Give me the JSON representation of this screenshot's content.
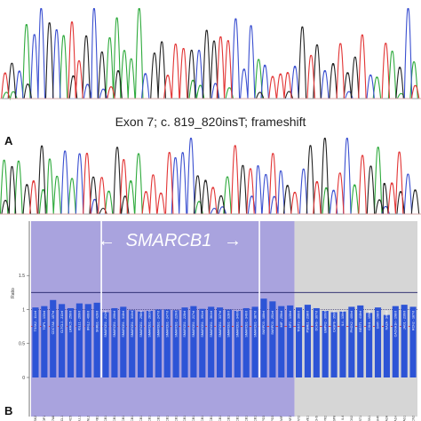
{
  "panelA": {
    "letter": "A",
    "caption": "Exon 7; c. 819_820insT; frameshift"
  },
  "panelB": {
    "letter": "B",
    "gene_label": "SMARCB1",
    "left_arrow": "←",
    "right_arrow": "→",
    "y_axis_title": "Ratio",
    "y_ticks": [
      "1.5",
      "1",
      "0.5",
      "0"
    ],
    "ref_lines": [
      1.25,
      1.0,
      0.75
    ],
    "ylim": [
      0,
      2.3
    ],
    "probes": [
      {
        "label": "TSSK2 - 114nt",
        "ratio": 1.03,
        "region": "blue"
      },
      {
        "label": "TOP1 - 133nt",
        "ratio": 1.05,
        "region": "blue"
      },
      {
        "label": "CDC7A8 - 157nt",
        "ratio": 1.14,
        "region": "blue"
      },
      {
        "label": "CLTCL1 - 211nt",
        "ratio": 1.08,
        "region": "blue"
      },
      {
        "label": "LRRC5 - 256nt",
        "ratio": 1.02,
        "region": "blue"
      },
      {
        "label": "IGLL1 - 269nt",
        "ratio": 1.09,
        "region": "blue"
      },
      {
        "label": "IFNL2 - 406nt",
        "ratio": 1.08,
        "region": "blue"
      },
      {
        "label": "SNRB1 - 429nt",
        "ratio": 1.1,
        "region": "blue"
      },
      {
        "label": "SMARCB1 - 212nt",
        "ratio": 0.96,
        "region": "blue"
      },
      {
        "label": "SMARCB1 - 206nt",
        "ratio": 1.02,
        "region": "blue"
      },
      {
        "label": "SMARCB1 - 318nt",
        "ratio": 1.04,
        "region": "blue"
      },
      {
        "label": "SMARCB1 - 310nt",
        "ratio": 0.99,
        "region": "blue"
      },
      {
        "label": "SMARCB1 - 298nt",
        "ratio": 0.97,
        "region": "blue"
      },
      {
        "label": "SMARCB1 - 283nt",
        "ratio": 0.98,
        "region": "blue"
      },
      {
        "label": "SMARCB1 - 247nt",
        "ratio": 1.0,
        "region": "blue"
      },
      {
        "label": "SMARCB1 - 247nt",
        "ratio": 1.0,
        "region": "blue"
      },
      {
        "label": "SMARCB1 - 229nt",
        "ratio": 0.99,
        "region": "blue"
      },
      {
        "label": "SMARCB1 - 228nt",
        "ratio": 1.03,
        "region": "blue"
      },
      {
        "label": "SMARCB1 - 217nt",
        "ratio": 1.05,
        "region": "blue"
      },
      {
        "label": "SMARCB1 - 391nt",
        "ratio": 1.01,
        "region": "blue"
      },
      {
        "label": "SMARCB1 - 364nt",
        "ratio": 1.04,
        "region": "blue"
      },
      {
        "label": "SMARCB1 - 337nt",
        "ratio": 1.03,
        "region": "blue"
      },
      {
        "label": "SMARCB1 - 328nt",
        "ratio": 1.0,
        "region": "blue"
      },
      {
        "label": "SMARCB1 - 340nt",
        "ratio": 0.98,
        "region": "blue"
      },
      {
        "label": "SMARCB1 - 346nt",
        "ratio": 1.02,
        "region": "blue"
      },
      {
        "label": "SMARCB1 - 387nt",
        "ratio": 1.04,
        "region": "blue"
      },
      {
        "label": "SNRPD3 - 186nt",
        "ratio": 1.16,
        "region": "blue"
      },
      {
        "label": "SNRPD3 - 251nt",
        "ratio": 1.12,
        "region": "blue"
      },
      {
        "label": "MIF - 256nt",
        "ratio": 1.05,
        "region": "blue"
      },
      {
        "label": "NF2 - 130nt",
        "ratio": 1.06,
        "region": "blue"
      },
      {
        "label": "TNNT2 - 366nt",
        "ratio": 1.03,
        "region": "gray"
      },
      {
        "label": "PSME1 - 238nt",
        "ratio": 1.07,
        "region": "gray"
      },
      {
        "label": "DCHS - 307nt",
        "ratio": 1.02,
        "region": "gray"
      },
      {
        "label": "BMPR2 - 309nt",
        "ratio": 0.98,
        "region": "gray"
      },
      {
        "label": "CASP8 - 359nt",
        "ratio": 0.96,
        "region": "gray"
      },
      {
        "label": "IL4 - 136nt",
        "ratio": 0.97,
        "region": "gray"
      },
      {
        "label": "PHOX2 - 400nt",
        "ratio": 1.04,
        "region": "gray"
      },
      {
        "label": "BEST1 - 418nt",
        "ratio": 1.06,
        "region": "gray"
      },
      {
        "label": "CSN1 - 159nt",
        "ratio": 0.95,
        "region": "gray"
      },
      {
        "label": "GHR - 198nt",
        "ratio": 1.03,
        "region": "gray"
      },
      {
        "label": "NA2A - 346nt",
        "ratio": 0.92,
        "region": "gray"
      },
      {
        "label": "CACNA1H - 198nt",
        "ratio": 1.05,
        "region": "gray"
      },
      {
        "label": "JAG1 - 239nt",
        "ratio": 1.07,
        "region": "gray"
      },
      {
        "label": "RCN2 - 187nt",
        "ratio": 1.04,
        "region": "gray"
      }
    ]
  },
  "colors": {
    "trace_blue": "#3a4fd0",
    "trace_red": "#e23434",
    "trace_green": "#2eaa3c",
    "trace_black": "#222222",
    "panel_blue": "#a9a3de",
    "panel_gray": "#d6d6d6",
    "bar": "#2d54d6",
    "ref_line": "#1f1f66",
    "dashed_line": "#d93c3c"
  },
  "trace_channels": [
    "trace_green",
    "trace_blue",
    "trace_black",
    "trace_red"
  ]
}
